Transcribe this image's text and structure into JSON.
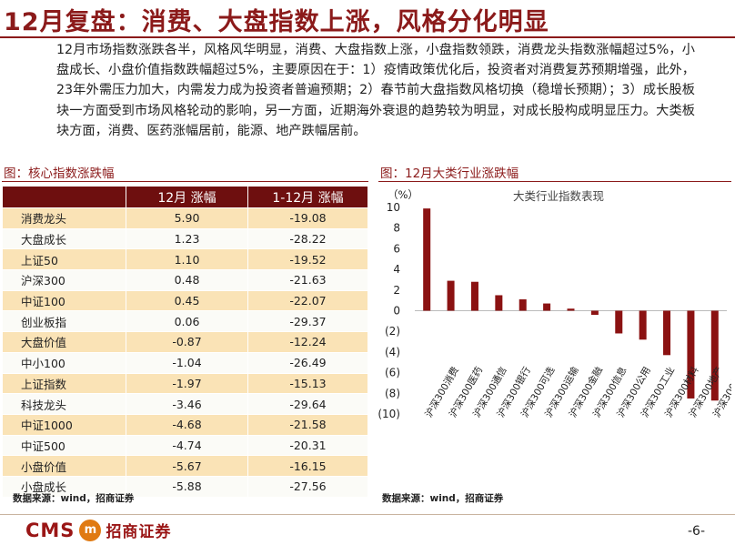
{
  "page": {
    "title": "12月复盘：消费、大盘指数上涨，风格分化明显",
    "summary": "12月市场指数涨跌各半，风格风华明显，消费、大盘指数上涨，小盘指数领跌，消费龙头指数涨幅超过5%，小盘成长、小盘价值指数跌幅超过5%，主要原因在于：1）疫情政策优化后，投资者对消费复苏预期增强，此外，23年外需压力加大，内需发力成为投资者普遍预期；2）春节前大盘指数风格切换（稳增长预期）；3）成长股板块一方面受到市场风格轮动的影响，另一方面，近期海外衰退的趋势较为明显，对成长股构成明显压力。大类板块方面，消费、医药涨幅居前，能源、地产跌幅居前。",
    "page_number": "-6-"
  },
  "table": {
    "caption": "图：核心指数涨跌幅",
    "headers": [
      "",
      "12月 涨幅",
      "1-12月 涨幅"
    ],
    "rows": [
      [
        "消费龙头",
        "5.90",
        "-19.08"
      ],
      [
        "大盘成长",
        "1.23",
        "-28.22"
      ],
      [
        "上证50",
        "1.10",
        "-19.52"
      ],
      [
        "沪深300",
        "0.48",
        "-21.63"
      ],
      [
        "中证100",
        "0.45",
        "-22.07"
      ],
      [
        "创业板指",
        "0.06",
        "-29.37"
      ],
      [
        "大盘价值",
        "-0.87",
        "-12.24"
      ],
      [
        "中小100",
        "-1.04",
        "-26.49"
      ],
      [
        "上证指数",
        "-1.97",
        "-15.13"
      ],
      [
        "科技龙头",
        "-3.46",
        "-29.64"
      ],
      [
        "中证1000",
        "-4.68",
        "-21.58"
      ],
      [
        "中证500",
        "-4.74",
        "-20.31"
      ],
      [
        "小盘价值",
        "-5.67",
        "-16.15"
      ],
      [
        "小盘成长",
        "-5.88",
        "-27.56"
      ]
    ],
    "source": "数据来源：wind，招商证券"
  },
  "chart_caption": "图：12月大类行业涨跌幅",
  "chart_source": "数据来源：wind，招商证券",
  "chart_data": {
    "type": "bar",
    "title": "大类行业指数表现",
    "ylabel": "（%）",
    "ylim": [
      -10,
      10
    ],
    "yticks": [
      10,
      8,
      6,
      4,
      2,
      0,
      -2,
      -4,
      -6,
      -8,
      -10
    ],
    "ytick_labels": [
      "10",
      "8",
      "6",
      "4",
      "2",
      "0",
      "(2)",
      "(4)",
      "(6)",
      "(8)",
      "(10)"
    ],
    "grid": false,
    "categories": [
      "沪深300消费",
      "沪深300医药",
      "沪深300通信",
      "沪深300银行",
      "沪深300可选",
      "沪深300运输",
      "沪深300金融",
      "沪深300信息",
      "沪深300公用",
      "沪深300工业",
      "沪深300材料",
      "沪深300地产",
      "沪深300能源"
    ],
    "values": [
      9.9,
      2.9,
      2.8,
      1.5,
      1.1,
      0.7,
      0.2,
      -0.4,
      -2.2,
      -2.8,
      -4.3,
      -8.5,
      -8.7
    ],
    "bar_color": "#8b1212"
  },
  "logo": {
    "cms": "CMS",
    "mark": "m",
    "name": "招商证券"
  }
}
